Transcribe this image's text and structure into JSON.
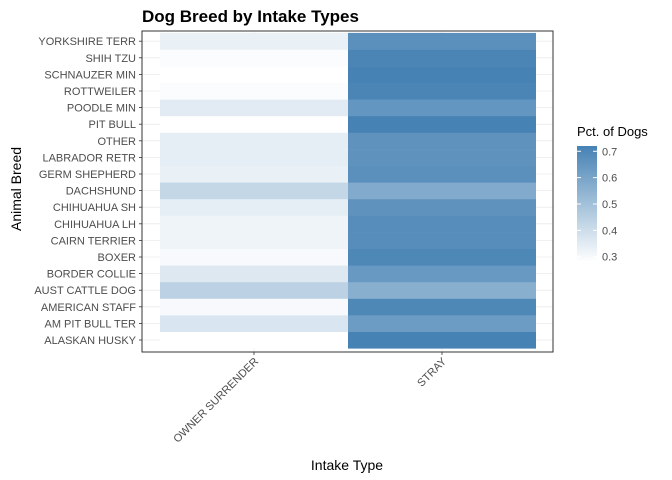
{
  "chart_data": {
    "type": "heatmap",
    "title": "Dog Breed by Intake Types",
    "xlabel": "Intake Type",
    "ylabel": "Animal Breed",
    "x_categories": [
      "OWNER SURRENDER",
      "STRAY"
    ],
    "y_categories": [
      "ALASKAN HUSKY",
      "AM PIT BULL TER",
      "AMERICAN STAFF",
      "AUST CATTLE DOG",
      "BORDER COLLIE",
      "BOXER",
      "CAIRN TERRIER",
      "CHIHUAHUA LH",
      "CHIHUAHUA SH",
      "DACHSHUND",
      "GERM SHEPHERD",
      "LABRADOR RETR",
      "OTHER",
      "PIT BULL",
      "POODLE MIN",
      "ROTTWEILER",
      "SCHNAUZER MIN",
      "SHIH TZU",
      "YORKSHIRE TERR"
    ],
    "values": [
      [
        0.28,
        0.72
      ],
      [
        0.37,
        0.63
      ],
      [
        0.3,
        0.7
      ],
      [
        0.44,
        0.56
      ],
      [
        0.36,
        0.64
      ],
      [
        0.3,
        0.7
      ],
      [
        0.32,
        0.68
      ],
      [
        0.32,
        0.68
      ],
      [
        0.34,
        0.66
      ],
      [
        0.42,
        0.58
      ],
      [
        0.33,
        0.67
      ],
      [
        0.34,
        0.66
      ],
      [
        0.34,
        0.66
      ],
      [
        0.28,
        0.72
      ],
      [
        0.35,
        0.65
      ],
      [
        0.29,
        0.71
      ],
      [
        0.28,
        0.72
      ],
      [
        0.29,
        0.71
      ],
      [
        0.33,
        0.67
      ]
    ],
    "legend": {
      "title": "Pct. of Dogs",
      "ticks": [
        "0.3",
        "0.4",
        "0.5",
        "0.6",
        "0.7"
      ],
      "tick_values": [
        0.3,
        0.4,
        0.5,
        0.6,
        0.7
      ],
      "range": [
        0.28,
        0.72
      ],
      "low_color": "#ffffff",
      "high_color": "#4682b4",
      "placement": "right"
    },
    "grid": true,
    "panel_border": true
  }
}
